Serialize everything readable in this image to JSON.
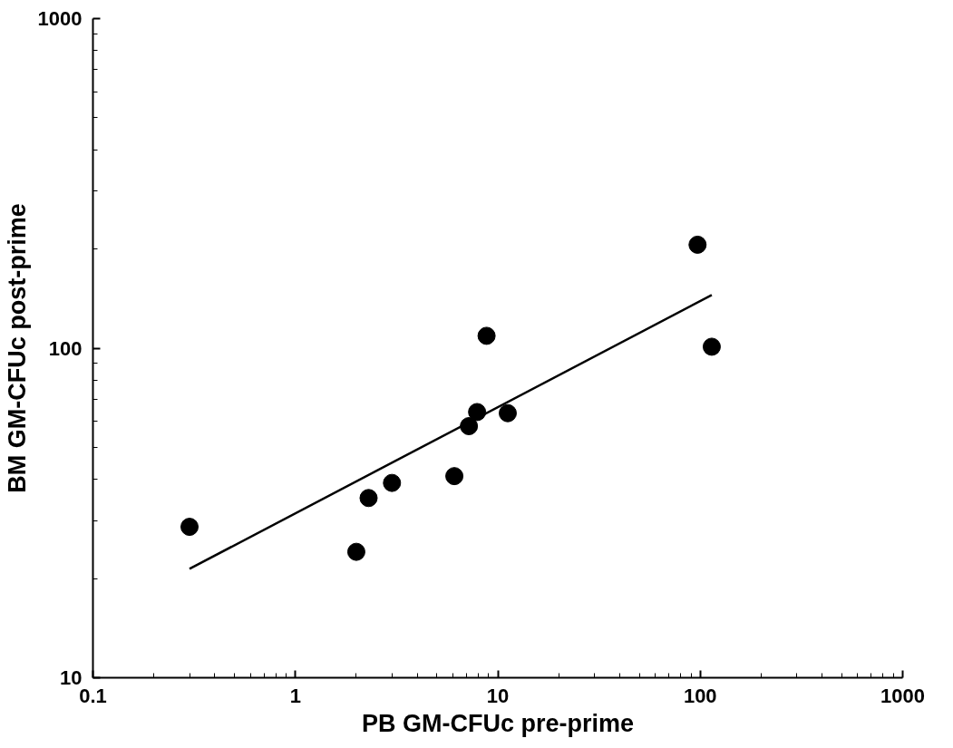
{
  "chart_data": {
    "type": "scatter",
    "xlabel": "PB GM-CFUc pre-prime",
    "ylabel": "BM GM-CFUc post-prime",
    "log": "xy",
    "grid": false,
    "xlim": [
      0.1,
      1000
    ],
    "ylim": [
      10,
      1000
    ],
    "xticks": [
      0.1,
      1,
      10,
      100,
      1000
    ],
    "yticks": [
      10,
      100,
      1000
    ],
    "series": [
      {
        "color": "#000000",
        "marker": "circle",
        "x": [
          0.3,
          2.0,
          2.3,
          3.0,
          6.1,
          7.2,
          7.9,
          11.2,
          8.8,
          97,
          114
        ],
        "values": [
          28.7,
          24.1,
          35.1,
          39.0,
          40.9,
          58,
          64,
          63.5,
          109,
          206,
          101
        ]
      },
      {
        "type": "line",
        "color": "#000000",
        "marker": "none",
        "x": [
          0.3,
          114
        ],
        "values": [
          21.4,
          145
        ]
      }
    ]
  }
}
